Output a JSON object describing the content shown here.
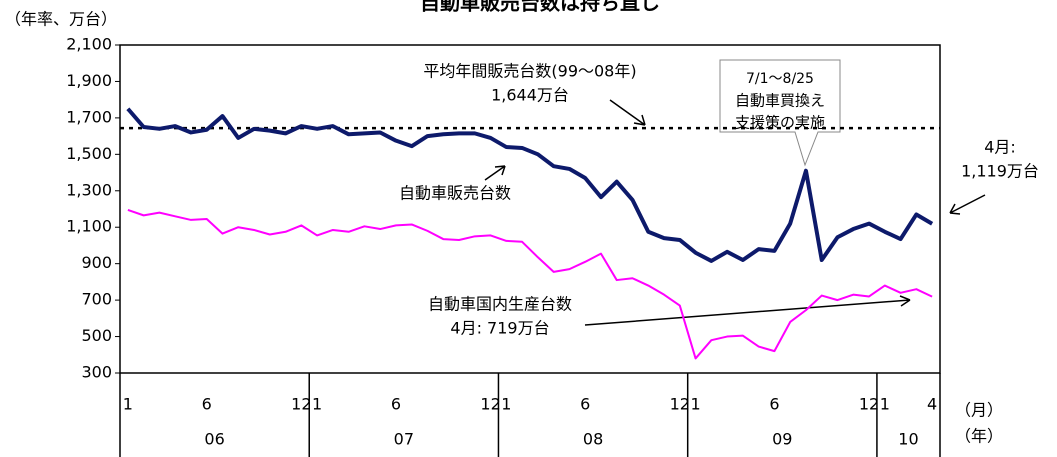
{
  "chart_data": {
    "type": "line",
    "title": "自動車販売台数は持ち直し",
    "y_axis_label": "（年率、万台）",
    "x_axis_label": "（月）",
    "year_axis_label": "（年）",
    "categories": [
      "1",
      null,
      null,
      null,
      null,
      "6",
      null,
      null,
      null,
      null,
      null,
      "12",
      "1",
      null,
      null,
      null,
      null,
      "6",
      null,
      null,
      null,
      null,
      null,
      "12",
      "1",
      null,
      null,
      null,
      null,
      "6",
      null,
      null,
      null,
      null,
      null,
      "12",
      "1",
      null,
      null,
      null,
      null,
      "6",
      null,
      null,
      null,
      null,
      null,
      "12",
      "1",
      null,
      null,
      "4"
    ],
    "years": [
      "06",
      "07",
      "08",
      "09",
      "10"
    ],
    "series": [
      {
        "name": "自動車販売台数",
        "color": "#0d1a6b",
        "values": [
          1750,
          1650,
          1640,
          1655,
          1620,
          1635,
          1710,
          1590,
          1640,
          1630,
          1615,
          1655,
          1640,
          1655,
          1610,
          1615,
          1620,
          1575,
          1545,
          1600,
          1610,
          1615,
          1615,
          1590,
          1540,
          1535,
          1500,
          1435,
          1420,
          1370,
          1265,
          1350,
          1250,
          1075,
          1040,
          1030,
          960,
          915,
          965,
          920,
          980,
          970,
          1120,
          1410,
          920,
          1045,
          1090,
          1120,
          1075,
          1035,
          1170,
          1119
        ]
      },
      {
        "name": "自動車国内生産台数",
        "color": "#ff00ff",
        "values": [
          1195,
          1165,
          1180,
          1160,
          1140,
          1145,
          1065,
          1100,
          1085,
          1060,
          1075,
          1110,
          1055,
          1085,
          1075,
          1105,
          1090,
          1110,
          1115,
          1080,
          1035,
          1030,
          1050,
          1055,
          1025,
          1020,
          935,
          855,
          870,
          910,
          955,
          810,
          820,
          780,
          730,
          670,
          380,
          480,
          500,
          505,
          445,
          420,
          580,
          645,
          725,
          700,
          730,
          720,
          780,
          740,
          760,
          719
        ]
      }
    ],
    "reference_line": {
      "value": 1644
    },
    "annotations": {
      "average": [
        "平均年間販売台数(99～08年)",
        "1,644万台"
      ],
      "policy": [
        "7/1～8/25",
        "自動車買換え",
        "支援策の実施"
      ],
      "latest_sales": [
        "4月:",
        "1,119万台"
      ],
      "latest_production": "4月: 719万台"
    },
    "ylim": [
      300,
      2100
    ],
    "yticks": [
      {
        "value": 300,
        "label": "300"
      },
      {
        "value": 500,
        "label": "500"
      },
      {
        "value": 700,
        "label": "700"
      },
      {
        "value": 900,
        "label": "900"
      },
      {
        "value": 1100,
        "label": "1,100"
      },
      {
        "value": 1300,
        "label": "1,300"
      },
      {
        "value": 1500,
        "label": "1,500"
      },
      {
        "value": 1700,
        "label": "1,700"
      },
      {
        "value": 1900,
        "label": "1,900"
      },
      {
        "value": 2100,
        "label": "2,100"
      }
    ]
  }
}
